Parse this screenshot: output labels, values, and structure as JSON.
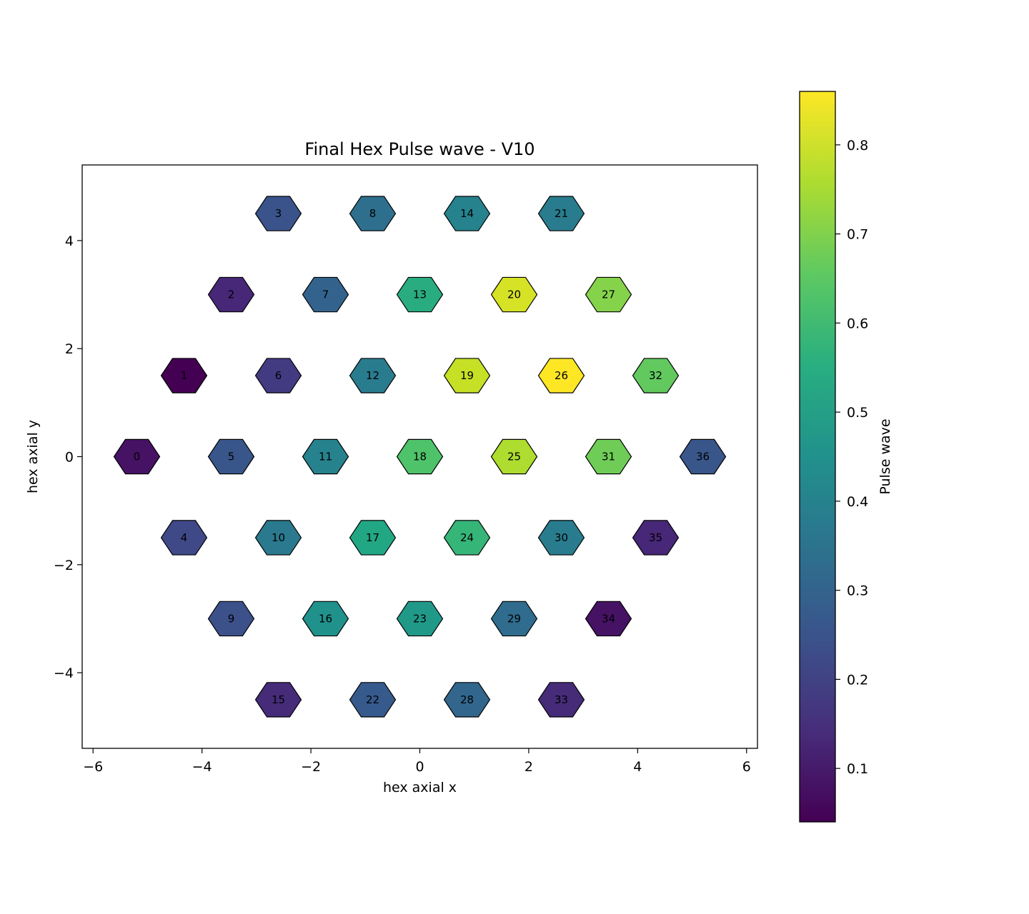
{
  "chart_data": {
    "type": "heatmap",
    "title": "Final Hex Pulse wave - V10",
    "xlabel": "hex axial x",
    "ylabel": "hex axial y",
    "xlim": [
      -6.2,
      6.2
    ],
    "ylim": [
      -5.4,
      5.4
    ],
    "xticks": [
      -6,
      -4,
      -2,
      0,
      2,
      4,
      6
    ],
    "yticks": [
      -4,
      -2,
      0,
      2,
      4
    ],
    "xtick_labels": [
      "−6",
      "−4",
      "−2",
      "0",
      "2",
      "4",
      "6"
    ],
    "ytick_labels": [
      "−4",
      "−2",
      "0",
      "2",
      "4"
    ],
    "colormap": "viridis",
    "colorbar": {
      "label": "Pulse wave",
      "range": [
        0.04,
        0.86
      ],
      "ticks": [
        0.1,
        0.2,
        0.3,
        0.4,
        0.5,
        0.6,
        0.7,
        0.8
      ],
      "tick_labels": [
        "0.1",
        "0.2",
        "0.3",
        "0.4",
        "0.5",
        "0.6",
        "0.7",
        "0.8"
      ]
    },
    "cells": [
      {
        "id": "0",
        "x": -5.196,
        "y": 0.0,
        "value": 0.08
      },
      {
        "id": "1",
        "x": -4.33,
        "y": 1.5,
        "value": 0.04
      },
      {
        "id": "2",
        "x": -3.464,
        "y": 3.0,
        "value": 0.13
      },
      {
        "id": "3",
        "x": -2.598,
        "y": 4.5,
        "value": 0.25
      },
      {
        "id": "4",
        "x": -4.33,
        "y": -1.5,
        "value": 0.22
      },
      {
        "id": "5",
        "x": -3.464,
        "y": 0.0,
        "value": 0.26
      },
      {
        "id": "6",
        "x": -2.598,
        "y": 1.5,
        "value": 0.18
      },
      {
        "id": "7",
        "x": -1.732,
        "y": 3.0,
        "value": 0.3
      },
      {
        "id": "8",
        "x": -0.866,
        "y": 4.5,
        "value": 0.34
      },
      {
        "id": "9",
        "x": -3.464,
        "y": -3.0,
        "value": 0.24
      },
      {
        "id": "10",
        "x": -2.598,
        "y": -1.5,
        "value": 0.37
      },
      {
        "id": "11",
        "x": -1.732,
        "y": 0.0,
        "value": 0.4
      },
      {
        "id": "12",
        "x": -0.866,
        "y": 1.5,
        "value": 0.38
      },
      {
        "id": "13",
        "x": 0.0,
        "y": 3.0,
        "value": 0.55
      },
      {
        "id": "14",
        "x": 0.866,
        "y": 4.5,
        "value": 0.4
      },
      {
        "id": "15",
        "x": -2.598,
        "y": -4.5,
        "value": 0.14
      },
      {
        "id": "16",
        "x": -1.732,
        "y": -3.0,
        "value": 0.45
      },
      {
        "id": "17",
        "x": -0.866,
        "y": -1.5,
        "value": 0.53
      },
      {
        "id": "18",
        "x": 0.0,
        "y": 0.0,
        "value": 0.63
      },
      {
        "id": "19",
        "x": 0.866,
        "y": 1.5,
        "value": 0.79
      },
      {
        "id": "20",
        "x": 1.732,
        "y": 3.0,
        "value": 0.81
      },
      {
        "id": "21",
        "x": 2.598,
        "y": 4.5,
        "value": 0.38
      },
      {
        "id": "22",
        "x": -0.866,
        "y": -4.5,
        "value": 0.27
      },
      {
        "id": "23",
        "x": 0.0,
        "y": -3.0,
        "value": 0.48
      },
      {
        "id": "24",
        "x": 0.866,
        "y": -1.5,
        "value": 0.58
      },
      {
        "id": "25",
        "x": 1.732,
        "y": 0.0,
        "value": 0.76
      },
      {
        "id": "26",
        "x": 2.598,
        "y": 1.5,
        "value": 0.86
      },
      {
        "id": "27",
        "x": 3.464,
        "y": 3.0,
        "value": 0.71
      },
      {
        "id": "28",
        "x": 0.866,
        "y": -4.5,
        "value": 0.31
      },
      {
        "id": "29",
        "x": 1.732,
        "y": -3.0,
        "value": 0.33
      },
      {
        "id": "30",
        "x": 2.598,
        "y": -1.5,
        "value": 0.38
      },
      {
        "id": "31",
        "x": 3.464,
        "y": 0.0,
        "value": 0.68
      },
      {
        "id": "32",
        "x": 4.33,
        "y": 1.5,
        "value": 0.66
      },
      {
        "id": "33",
        "x": 2.598,
        "y": -4.5,
        "value": 0.14
      },
      {
        "id": "34",
        "x": 3.464,
        "y": -3.0,
        "value": 0.08
      },
      {
        "id": "35",
        "x": 4.33,
        "y": -1.5,
        "value": 0.13
      },
      {
        "id": "36",
        "x": 5.196,
        "y": 0.0,
        "value": 0.26
      }
    ]
  }
}
